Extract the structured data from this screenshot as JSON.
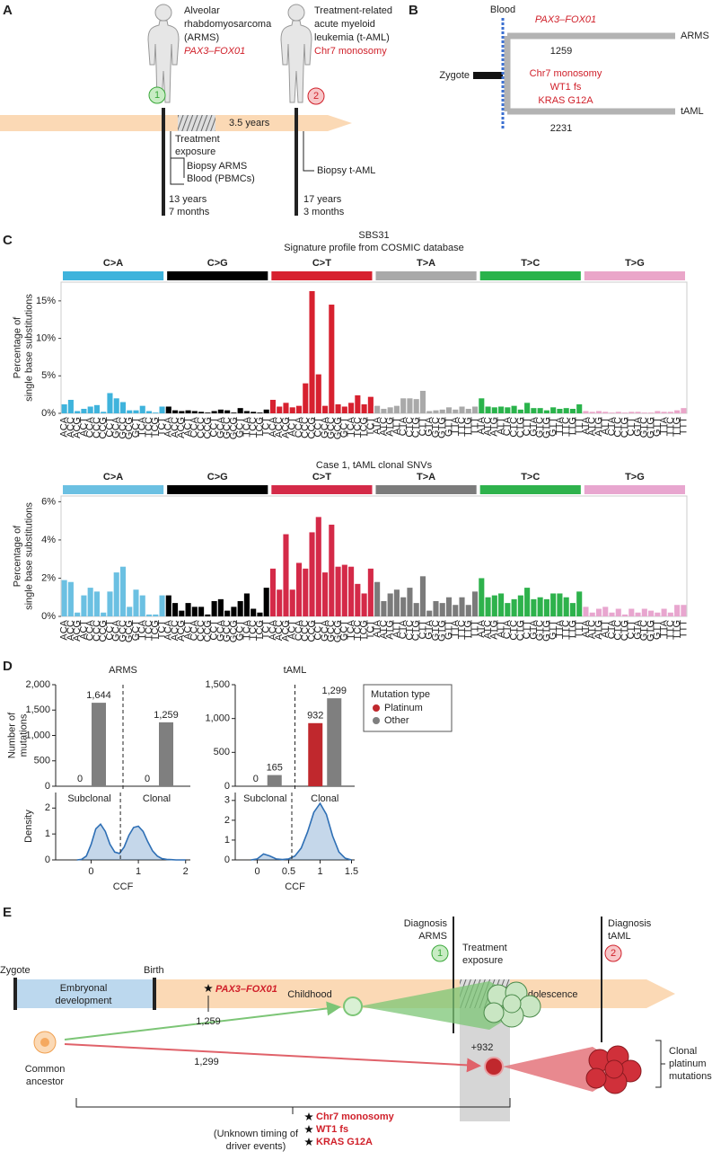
{
  "panel_labels": [
    "A",
    "B",
    "C",
    "D",
    "E"
  ],
  "panel_a": {
    "patient1": [
      "Alveolar",
      "rhabdomyosarcoma",
      "(ARMS)"
    ],
    "patient1_fusion": "PAX3–FOX01",
    "patient1_badge": "1",
    "patient2": [
      "Treatment-related",
      "acute myeloid",
      "leukemia (t-AML)"
    ],
    "patient2_alteration": "Chr7 monosomy",
    "patient2_badge": "2",
    "interval": "3.5 years",
    "treatment": [
      "Treatment",
      "exposure"
    ],
    "biopsy1": [
      "Biopsy ARMS",
      "Blood (PBMCs)"
    ],
    "age1": [
      "13 years",
      "7 months"
    ],
    "biopsy2": "Biopsy t-AML",
    "age2": [
      "17 years",
      "3 months"
    ]
  },
  "panel_b": {
    "blood": "Blood",
    "zygote": "Zygote",
    "arms": "ARMS",
    "taml": "tAML",
    "arms_driver": "PAX3–FOX01",
    "arms_count": "1259",
    "taml_drivers": [
      "Chr7 monosomy",
      "WT1 fs",
      "KRAS G12A"
    ],
    "taml_count": "2231"
  },
  "chart_data": [
    {
      "type": "bar",
      "title": "SBS31",
      "subtitle": "Signature profile from COSMIC database",
      "y_label": [
        "Percentage of",
        "single base substitutions"
      ],
      "groups": [
        {
          "name": "C>A",
          "color": "#3fb3dc"
        },
        {
          "name": "C>G",
          "color": "#000000"
        },
        {
          "name": "C>T",
          "color": "#d7212f"
        },
        {
          "name": "T>A",
          "color": "#a9a9a9"
        },
        {
          "name": "T>C",
          "color": "#2ab34b"
        },
        {
          "name": "T>G",
          "color": "#eaa6c9"
        }
      ],
      "categories": [
        "ACA",
        "ACC",
        "ACG",
        "ACT",
        "CCA",
        "CCC",
        "CCG",
        "CCT",
        "GCA",
        "GCC",
        "GCG",
        "GCT",
        "TCA",
        "TCC",
        "TCG",
        "TCT",
        "ACA",
        "ACC",
        "ACG",
        "ACT",
        "CCA",
        "CCC",
        "CCG",
        "CCT",
        "GCA",
        "GCC",
        "GCG",
        "GCT",
        "TCA",
        "TCC",
        "TCG",
        "TCT",
        "ACA",
        "ACC",
        "ACG",
        "ACT",
        "CCA",
        "CCC",
        "CCG",
        "CCT",
        "GCA",
        "GCC",
        "GCG",
        "GCT",
        "TCA",
        "TCC",
        "TCG",
        "TCT",
        "ATA",
        "ATC",
        "ATG",
        "ATT",
        "CTA",
        "CTC",
        "CTG",
        "CTT",
        "GTA",
        "GTC",
        "GTG",
        "GTT",
        "TTA",
        "TTC",
        "TTG",
        "TTT",
        "ATA",
        "ATC",
        "ATG",
        "ATT",
        "CTA",
        "CTC",
        "CTG",
        "CTT",
        "GTA",
        "GTC",
        "GTG",
        "GTT",
        "TTA",
        "TTC",
        "TTG",
        "TTT",
        "ATA",
        "ATC",
        "ATG",
        "ATT",
        "CTA",
        "CTC",
        "CTG",
        "CTT",
        "GTA",
        "GTC",
        "GTG",
        "GTT",
        "TTA",
        "TTC",
        "TTG",
        "TTT"
      ],
      "values": [
        1.2,
        1.8,
        0.3,
        0.6,
        0.9,
        1.1,
        0.2,
        2.7,
        2.0,
        1.5,
        0.4,
        0.4,
        1.0,
        0.3,
        0.1,
        0.9,
        0.9,
        0.4,
        0.3,
        0.4,
        0.3,
        0.2,
        0.1,
        0.3,
        0.5,
        0.4,
        0.1,
        0.7,
        0.3,
        0.2,
        0.1,
        0.5,
        1.8,
        0.9,
        1.4,
        0.8,
        1.0,
        4.0,
        16.3,
        5.2,
        1.0,
        14.5,
        1.2,
        0.9,
        1.4,
        2.4,
        1.2,
        2.2,
        1.0,
        0.6,
        0.8,
        1.0,
        2.0,
        2.0,
        1.9,
        3.0,
        0.3,
        0.4,
        0.5,
        0.8,
        0.5,
        0.9,
        0.6,
        0.9,
        2.0,
        0.9,
        0.8,
        0.9,
        0.8,
        1.0,
        0.5,
        1.4,
        0.7,
        0.7,
        0.4,
        0.8,
        0.6,
        0.7,
        0.6,
        1.2,
        0.3,
        0.2,
        0.3,
        0.2,
        0.1,
        0.2,
        0.1,
        0.2,
        0.2,
        0.1,
        0.1,
        0.3,
        0.2,
        0.2,
        0.4,
        0.7
      ],
      "ylim": [
        0,
        17.5
      ],
      "yticks": [
        {
          "value": 0,
          "label": "0%"
        },
        {
          "value": 5,
          "label": "5%"
        },
        {
          "value": 10,
          "label": "10%"
        },
        {
          "value": 15,
          "label": "15%"
        }
      ]
    },
    {
      "type": "bar",
      "title": "Case 1, tAML clonal SNVs",
      "y_label": [
        "Percentage of",
        "single base substitutions"
      ],
      "groups": [
        {
          "name": "C>A",
          "color": "#6bc0e2"
        },
        {
          "name": "C>G",
          "color": "#000000"
        },
        {
          "name": "C>T",
          "color": "#d42a48"
        },
        {
          "name": "T>A",
          "color": "#7b7b7b"
        },
        {
          "name": "T>C",
          "color": "#2eb24c"
        },
        {
          "name": "T>G",
          "color": "#e8a6cf"
        }
      ],
      "categories": [
        "ACA",
        "ACC",
        "ACG",
        "ACT",
        "CCA",
        "CCC",
        "CCG",
        "CCT",
        "GCA",
        "GCC",
        "GCG",
        "GCT",
        "TCA",
        "TCC",
        "TCG",
        "TCT",
        "ACA",
        "ACC",
        "ACG",
        "ACT",
        "CCA",
        "CCC",
        "CCG",
        "CCT",
        "GCA",
        "GCC",
        "GCG",
        "GCT",
        "TCA",
        "TCC",
        "TCG",
        "TCT",
        "ACA",
        "ACC",
        "ACG",
        "ACT",
        "CCA",
        "CCC",
        "CCG",
        "CCT",
        "GCA",
        "GCC",
        "GCG",
        "GCT",
        "TCA",
        "TCC",
        "TCG",
        "TCT",
        "ATA",
        "ATC",
        "ATG",
        "ATT",
        "CTA",
        "CTC",
        "CTG",
        "CTT",
        "GTA",
        "GTC",
        "GTG",
        "GTT",
        "TTA",
        "TTC",
        "TTG",
        "TTT",
        "ATA",
        "ATC",
        "ATG",
        "ATT",
        "CTA",
        "CTC",
        "CTG",
        "CTT",
        "GTA",
        "GTC",
        "GTG",
        "GTT",
        "TTA",
        "TTC",
        "TTG",
        "TTT",
        "ATA",
        "ATC",
        "ATG",
        "ATT",
        "CTA",
        "CTC",
        "CTG",
        "CTT",
        "GTA",
        "GTC",
        "GTG",
        "GTT",
        "TTA",
        "TTC",
        "TTG",
        "TTT"
      ],
      "values": [
        1.9,
        1.8,
        0.2,
        1.1,
        1.5,
        1.3,
        0.2,
        1.3,
        2.3,
        2.6,
        0.5,
        1.4,
        1.1,
        0.1,
        0.1,
        1.1,
        1.1,
        0.7,
        0.3,
        0.7,
        0.5,
        0.5,
        0.1,
        0.8,
        0.9,
        0.3,
        0.5,
        0.8,
        1.2,
        0.4,
        0.2,
        1.5,
        2.5,
        1.4,
        4.3,
        1.4,
        2.8,
        2.5,
        4.4,
        5.2,
        2.3,
        4.8,
        2.6,
        2.7,
        2.6,
        1.7,
        1.2,
        2.5,
        1.8,
        0.8,
        1.2,
        1.4,
        1.0,
        1.5,
        0.7,
        2.1,
        0.3,
        0.8,
        0.7,
        1.0,
        0.6,
        1.0,
        0.6,
        1.3,
        2.0,
        1.0,
        1.1,
        1.2,
        0.7,
        0.9,
        1.1,
        1.5,
        0.9,
        1.0,
        0.9,
        1.2,
        1.2,
        1.0,
        0.7,
        1.3,
        0.5,
        0.2,
        0.4,
        0.5,
        0.2,
        0.4,
        0.1,
        0.4,
        0.2,
        0.4,
        0.3,
        0.2,
        0.4,
        0.2,
        0.6,
        0.6
      ],
      "ylim": [
        0,
        6.3
      ],
      "yticks": [
        {
          "value": 0,
          "label": "0%"
        },
        {
          "value": 2,
          "label": "2%"
        },
        {
          "value": 4,
          "label": "4%"
        },
        {
          "value": 6,
          "label": "6%"
        }
      ]
    },
    {
      "type": "bar",
      "title": "ARMS",
      "y_label": [
        "Number of",
        "mutations"
      ],
      "categories": [
        "Subclonal",
        "Clonal"
      ],
      "series": [
        {
          "name": "Platinum",
          "color": "#c0282d",
          "values": [
            0,
            0
          ]
        },
        {
          "name": "Other",
          "color": "#7f7f7f",
          "values": [
            1644,
            1259
          ],
          "value_labels": [
            "1,644",
            "1,259"
          ]
        }
      ],
      "ylim": [
        0,
        2000
      ],
      "yticks": [
        0,
        500,
        {
          "value": 1000,
          "label": "1,000"
        },
        {
          "value": 1500,
          "label": "1,500"
        },
        {
          "value": 2000,
          "label": "2,000"
        }
      ]
    },
    {
      "type": "bar",
      "title": "tAML",
      "categories": [
        "Subclonal",
        "Clonal"
      ],
      "series": [
        {
          "name": "Platinum",
          "color": "#c0282d",
          "values": [
            0,
            932
          ]
        },
        {
          "name": "Other",
          "color": "#7f7f7f",
          "values": [
            165,
            1299
          ],
          "value_labels": [
            "165",
            "1,299"
          ]
        }
      ],
      "ylim": [
        0,
        1500
      ],
      "yticks": [
        0,
        500,
        {
          "value": 1000,
          "label": "1,000"
        },
        {
          "value": 1500,
          "label": "1,500"
        }
      ],
      "legend": "right",
      "legend_title": "Mutation type"
    },
    {
      "type": "line",
      "x_label": "CCF",
      "y_label": "Density",
      "color": "#2e6fb5",
      "x": [
        -0.3,
        -0.2,
        -0.1,
        0,
        0.1,
        0.2,
        0.3,
        0.4,
        0.5,
        0.6,
        0.7,
        0.8,
        0.9,
        1.0,
        1.1,
        1.2,
        1.3,
        1.4,
        1.5,
        1.6,
        1.7,
        1.8,
        1.9,
        2.0
      ],
      "values": [
        0,
        0.02,
        0.15,
        0.6,
        1.2,
        1.38,
        1.1,
        0.6,
        0.3,
        0.25,
        0.5,
        0.95,
        1.25,
        1.3,
        1.1,
        0.7,
        0.35,
        0.15,
        0.05,
        0.02,
        0.01,
        0,
        0,
        0
      ],
      "xlim": [
        -0.75,
        2.1
      ],
      "xticks": [
        0,
        1,
        2
      ],
      "ylim": [
        0,
        2.6
      ],
      "yticks": [
        0,
        1,
        2
      ],
      "threshold": 0.62
    },
    {
      "type": "line",
      "x_label": "CCF",
      "color": "#2e6fb5",
      "x": [
        -0.1,
        0,
        0.1,
        0.2,
        0.3,
        0.4,
        0.5,
        0.6,
        0.7,
        0.8,
        0.9,
        1.0,
        1.1,
        1.2,
        1.3,
        1.4,
        1.5
      ],
      "values": [
        0,
        0.05,
        0.3,
        0.2,
        0.05,
        0.02,
        0.05,
        0.2,
        0.6,
        1.4,
        2.4,
        2.85,
        2.3,
        1.2,
        0.4,
        0.08,
        0
      ],
      "xlim": [
        -0.35,
        1.55
      ],
      "xticks": [
        0,
        0.5,
        1,
        1.5
      ],
      "ylim": [
        0,
        3.4
      ],
      "yticks": [
        0,
        1,
        2,
        3
      ],
      "threshold": 0.55
    }
  ],
  "panel_e": {
    "zygote": "Zygote",
    "birth": "Birth",
    "embryonal": [
      "Embryonal",
      "development"
    ],
    "childhood": "Childhood",
    "adolescence": "Adolescence",
    "diagnosis_arms": [
      "Diagnosis",
      "ARMS"
    ],
    "badge1": "1",
    "treatment": [
      "Treatment",
      "exposure"
    ],
    "diagnosis_taml": [
      "Diagnosis",
      "tAML"
    ],
    "badge2": "2",
    "fusion": "PAX3–FOX01",
    "arms_count": "1,259",
    "taml_count": "1,299",
    "platinum_count": "+932",
    "ancestor": [
      "Common",
      "ancestor"
    ],
    "clonal": [
      "Clonal",
      "platinum",
      "mutations"
    ],
    "unknown": [
      "(Unknown timing of",
      "driver events)"
    ],
    "drivers": [
      "Chr7 monosomy",
      "WT1 fs",
      "KRAS G12A"
    ]
  }
}
